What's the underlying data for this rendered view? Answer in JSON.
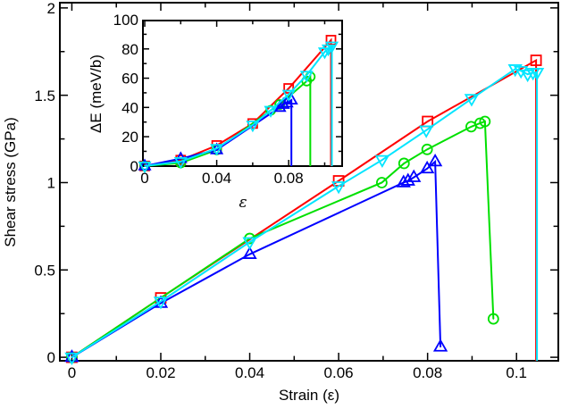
{
  "chart_data": [
    {
      "type": "line",
      "xlabel": "Strain (ε)",
      "ylabel": "Shear stress (GPa)",
      "xlim": [
        -0.0027,
        0.1094
      ],
      "ylim": [
        -0.02,
        2.03
      ],
      "xticks": [
        0,
        0.02,
        0.04,
        0.06,
        0.08,
        0.1
      ],
      "xtick_labels": [
        "0",
        "0.02",
        "0.04",
        "0.06",
        "0.08",
        "0.1"
      ],
      "yticks": [
        0,
        0.5,
        1,
        1.5,
        2
      ],
      "ytick_labels": [
        "0",
        "0.5",
        "1",
        "1.5",
        "2"
      ],
      "grid": false,
      "series": [
        {
          "color": "#ff0000",
          "marker": "square",
          "drop_to_zero": true,
          "x": [
            0,
            0.02,
            0.06,
            0.08,
            0.1044
          ],
          "y": [
            0,
            0.34,
            1.01,
            1.35,
            1.7
          ]
        },
        {
          "color": "#00e000",
          "marker": "circle",
          "drop_to_zero": false,
          "x": [
            0,
            0.04,
            0.0697,
            0.0747,
            0.0799,
            0.0898,
            0.0918,
            0.0929,
            0.0948
          ],
          "y": [
            0,
            0.68,
            1.0,
            1.11,
            1.19,
            1.32,
            1.34,
            1.35,
            0.22
          ]
        },
        {
          "color": "#0000ff",
          "marker": "triangle-up",
          "drop_to_zero": false,
          "x": [
            0,
            0.02,
            0.04,
            0.0746,
            0.0756,
            0.0769,
            0.0799,
            0.0817,
            0.0829
          ],
          "y": [
            0,
            0.31,
            0.59,
            1.0,
            1.01,
            1.03,
            1.08,
            1.12,
            0.06
          ]
        },
        {
          "color": "#00e5ff",
          "marker": "triangle-down",
          "drop_to_zero": true,
          "x": [
            0,
            0.02,
            0.04,
            0.06,
            0.0698,
            0.0797,
            0.0899,
            0.0997,
            0.101,
            0.1025,
            0.1037,
            0.1046
          ],
          "y": [
            0,
            0.32,
            0.66,
            0.98,
            1.13,
            1.3,
            1.48,
            1.65,
            1.64,
            1.62,
            1.63,
            1.63
          ]
        }
      ]
    },
    {
      "type": "line",
      "inset": true,
      "xlabel": "ε",
      "ylabel": "ΔE (meV/b)",
      "xlim": [
        -0.001,
        0.1097
      ],
      "ylim": [
        -0.1,
        99.4
      ],
      "xticks": [
        0,
        0.04,
        0.08
      ],
      "xtick_labels": [
        "0",
        "0.04",
        "0.08"
      ],
      "yticks": [
        0,
        20,
        40,
        60,
        80,
        100
      ],
      "ytick_labels": [
        "0",
        "20",
        "40",
        "60",
        "80",
        "100"
      ],
      "grid": false,
      "series": [
        {
          "color": "#ff0000",
          "marker": "square",
          "drop_to_zero": true,
          "x": [
            0,
            0.02,
            0.04,
            0.06,
            0.08,
            0.1035
          ],
          "y": [
            0,
            4,
            14,
            29,
            53,
            86
          ]
        },
        {
          "color": "#00e000",
          "marker": "circle",
          "drop_to_zero": true,
          "x": [
            0,
            0.02,
            0.04,
            0.07,
            0.075,
            0.09,
            0.092
          ],
          "y": [
            0,
            2,
            11,
            38,
            42,
            58,
            61
          ]
        },
        {
          "color": "#0000ff",
          "marker": "triangle-up",
          "drop_to_zero": true,
          "x": [
            0,
            0.02,
            0.04,
            0.075,
            0.077,
            0.079,
            0.0815
          ],
          "y": [
            0,
            5,
            11,
            40,
            42,
            43,
            45
          ]
        },
        {
          "color": "#00e5ff",
          "marker": "triangle-down",
          "drop_to_zero": true,
          "x": [
            0,
            0.02,
            0.04,
            0.06,
            0.07,
            0.08,
            0.09,
            0.1,
            0.102,
            0.104
          ],
          "y": [
            0,
            3,
            12,
            28,
            38,
            49,
            62,
            78,
            80,
            82
          ]
        }
      ]
    }
  ]
}
